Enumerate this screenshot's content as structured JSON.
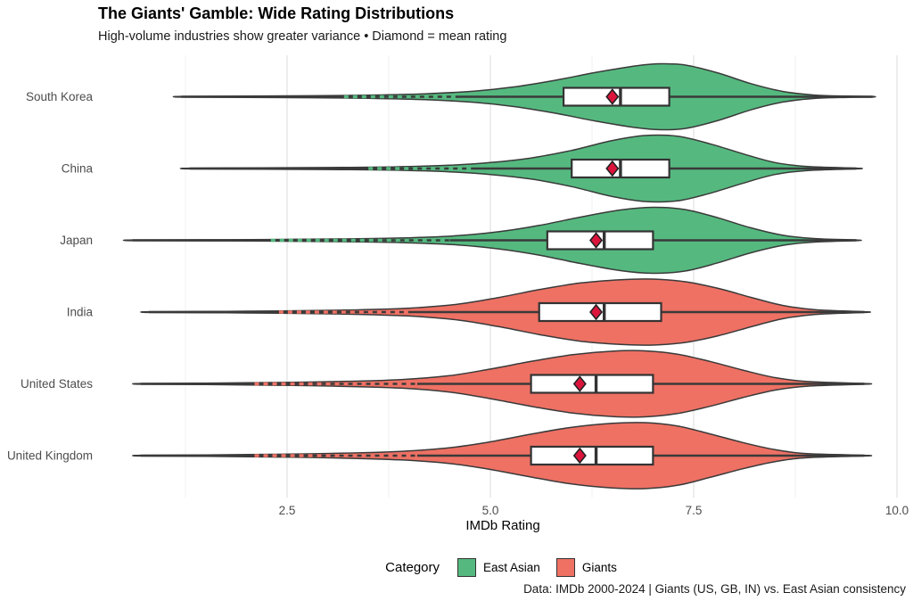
{
  "header": {
    "title": "The Giants' Gamble: Wide Rating Distributions",
    "subtitle": "High-volume industries show greater variance • Diamond = mean rating"
  },
  "footer": {
    "caption": "Data: IMDb 2000-2024 | Giants (US, GB, IN) vs. East Asian consistency"
  },
  "colors": {
    "east_asian": "#55b97f",
    "giants": "#ee7164",
    "mean_diamond": "#dc143c",
    "box_fill": "#ffffff",
    "stroke": "#333333",
    "line": "#3a3a3a",
    "grid_major": "#e5e5e5",
    "grid_minor": "#f2f2f2",
    "text_muted": "#4d4d4d"
  },
  "chart_data": {
    "type": "violin",
    "orientation": "horizontal",
    "title": "The Giants' Gamble: Wide Rating Distributions",
    "subtitle": "High-volume industries show greater variance • Diamond = mean rating",
    "caption": "Data: IMDb 2000-2024 | Giants (US, GB, IN) vs. East Asian consistency",
    "xlabel": "IMDb Rating",
    "ylabel": "",
    "xlim": [
      0.2,
      10.1
    ],
    "x_ticks": [
      2.5,
      5.0,
      7.5,
      10.0
    ],
    "x_tick_labels": [
      "2.5",
      "5.0",
      "7.5",
      "10.0"
    ],
    "x_minor_ticks": [
      1.25,
      3.75,
      6.25,
      8.75
    ],
    "grid": "vertical-only",
    "legend_position": "bottom",
    "legend": {
      "title": "Category",
      "entries": [
        {
          "label": "East Asian",
          "color": "#55b97f"
        },
        {
          "label": "Giants",
          "color": "#ee7164"
        }
      ]
    },
    "categories": [
      "South Korea",
      "China",
      "Japan",
      "India",
      "United States",
      "United Kingdom"
    ],
    "series": [
      {
        "name": "South Korea",
        "category": "East Asian",
        "color": "#55b97f",
        "min": 1.2,
        "q1": 5.9,
        "median": 6.6,
        "q3": 7.2,
        "mean": 6.5,
        "max": 9.7,
        "tail_dash": [
          3.2,
          4.6
        ],
        "density": [
          [
            1.2,
            0.01
          ],
          [
            2.0,
            0.02
          ],
          [
            2.8,
            0.03
          ],
          [
            3.5,
            0.05
          ],
          [
            4.2,
            0.09
          ],
          [
            4.8,
            0.17
          ],
          [
            5.3,
            0.3
          ],
          [
            5.8,
            0.5
          ],
          [
            6.3,
            0.74
          ],
          [
            6.8,
            0.94
          ],
          [
            7.1,
            1.0
          ],
          [
            7.4,
            0.96
          ],
          [
            7.8,
            0.72
          ],
          [
            8.2,
            0.4
          ],
          [
            8.6,
            0.16
          ],
          [
            9.0,
            0.05
          ],
          [
            9.4,
            0.02
          ],
          [
            9.7,
            0.01
          ]
        ]
      },
      {
        "name": "China",
        "category": "East Asian",
        "color": "#55b97f",
        "min": 1.3,
        "q1": 6.0,
        "median": 6.6,
        "q3": 7.2,
        "mean": 6.5,
        "max": 9.5,
        "tail_dash": [
          3.5,
          4.8
        ],
        "density": [
          [
            1.3,
            0.01
          ],
          [
            2.2,
            0.02
          ],
          [
            3.0,
            0.03
          ],
          [
            3.8,
            0.05
          ],
          [
            4.5,
            0.1
          ],
          [
            5.0,
            0.18
          ],
          [
            5.5,
            0.32
          ],
          [
            6.0,
            0.55
          ],
          [
            6.5,
            0.85
          ],
          [
            6.9,
            1.0
          ],
          [
            7.3,
            0.98
          ],
          [
            7.7,
            0.75
          ],
          [
            8.1,
            0.45
          ],
          [
            8.5,
            0.18
          ],
          [
            8.9,
            0.06
          ],
          [
            9.5,
            0.01
          ]
        ]
      },
      {
        "name": "Japan",
        "category": "East Asian",
        "color": "#55b97f",
        "min": 0.6,
        "q1": 5.7,
        "median": 6.4,
        "q3": 7.0,
        "mean": 6.3,
        "max": 9.5,
        "tail_dash": [
          2.3,
          4.5
        ],
        "density": [
          [
            0.6,
            0.01
          ],
          [
            1.5,
            0.015
          ],
          [
            2.3,
            0.025
          ],
          [
            3.1,
            0.04
          ],
          [
            3.9,
            0.07
          ],
          [
            4.6,
            0.14
          ],
          [
            5.1,
            0.26
          ],
          [
            5.6,
            0.45
          ],
          [
            6.1,
            0.7
          ],
          [
            6.6,
            0.92
          ],
          [
            7.0,
            1.0
          ],
          [
            7.4,
            0.93
          ],
          [
            7.8,
            0.68
          ],
          [
            8.2,
            0.38
          ],
          [
            8.6,
            0.15
          ],
          [
            9.0,
            0.05
          ],
          [
            9.5,
            0.01
          ]
        ]
      },
      {
        "name": "India",
        "category": "Giants",
        "color": "#ee7164",
        "min": 0.8,
        "q1": 5.6,
        "median": 6.4,
        "q3": 7.1,
        "mean": 6.3,
        "max": 9.6,
        "tail_dash": [
          2.4,
          4.0
        ],
        "density": [
          [
            0.8,
            0.01
          ],
          [
            1.6,
            0.02
          ],
          [
            2.4,
            0.035
          ],
          [
            3.2,
            0.06
          ],
          [
            4.0,
            0.12
          ],
          [
            4.6,
            0.24
          ],
          [
            5.1,
            0.44
          ],
          [
            5.6,
            0.68
          ],
          [
            6.1,
            0.88
          ],
          [
            6.6,
            0.98
          ],
          [
            7.0,
            1.0
          ],
          [
            7.4,
            0.92
          ],
          [
            7.8,
            0.72
          ],
          [
            8.2,
            0.45
          ],
          [
            8.6,
            0.2
          ],
          [
            9.0,
            0.07
          ],
          [
            9.6,
            0.01
          ]
        ]
      },
      {
        "name": "United States",
        "category": "Giants",
        "color": "#ee7164",
        "min": 0.7,
        "q1": 5.5,
        "median": 6.3,
        "q3": 7.0,
        "mean": 6.1,
        "max": 9.6,
        "tail_dash": [
          2.1,
          4.1
        ],
        "density": [
          [
            0.7,
            0.01
          ],
          [
            1.5,
            0.02
          ],
          [
            2.3,
            0.04
          ],
          [
            3.1,
            0.07
          ],
          [
            3.9,
            0.13
          ],
          [
            4.5,
            0.25
          ],
          [
            5.0,
            0.45
          ],
          [
            5.5,
            0.68
          ],
          [
            6.0,
            0.88
          ],
          [
            6.5,
            0.99
          ],
          [
            6.9,
            1.0
          ],
          [
            7.3,
            0.9
          ],
          [
            7.7,
            0.68
          ],
          [
            8.1,
            0.42
          ],
          [
            8.5,
            0.19
          ],
          [
            8.9,
            0.07
          ],
          [
            9.6,
            0.01
          ]
        ]
      },
      {
        "name": "United Kingdom",
        "category": "Giants",
        "color": "#ee7164",
        "min": 0.7,
        "q1": 5.5,
        "median": 6.3,
        "q3": 7.0,
        "mean": 6.1,
        "max": 9.6,
        "tail_dash": [
          2.1,
          4.1
        ],
        "density": [
          [
            0.7,
            0.01
          ],
          [
            1.5,
            0.02
          ],
          [
            2.3,
            0.04
          ],
          [
            3.1,
            0.07
          ],
          [
            3.9,
            0.13
          ],
          [
            4.5,
            0.24
          ],
          [
            5.0,
            0.42
          ],
          [
            5.5,
            0.65
          ],
          [
            6.0,
            0.86
          ],
          [
            6.5,
            0.98
          ],
          [
            6.9,
            1.0
          ],
          [
            7.3,
            0.9
          ],
          [
            7.7,
            0.66
          ],
          [
            8.1,
            0.4
          ],
          [
            8.5,
            0.18
          ],
          [
            8.9,
            0.06
          ],
          [
            9.6,
            0.01
          ]
        ]
      }
    ]
  }
}
